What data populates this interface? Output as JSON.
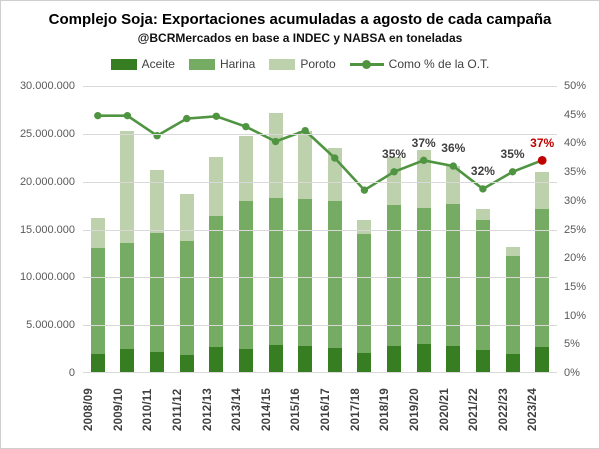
{
  "header": {
    "title": "Complejo Soja: Exportaciones acumuladas a agosto de cada campaña",
    "subtitle": "@BCRMercados en base a INDEC y NABSA en toneladas"
  },
  "colors": {
    "aceite": "#377d22",
    "harina": "#76ab64",
    "poroto": "#bdd1ad",
    "line": "#4f9440",
    "last_point": "#c00000",
    "grid": "#d9d9d9",
    "axis_text": "#595959",
    "label_text": "#404040"
  },
  "legend": [
    {
      "label": "Aceite",
      "type": "swatch",
      "color": "#377d22"
    },
    {
      "label": "Harina",
      "type": "swatch",
      "color": "#76ab64"
    },
    {
      "label": "Poroto",
      "type": "swatch",
      "color": "#bdd1ad"
    },
    {
      "label": "Como % de la O.T.",
      "type": "line",
      "color": "#4f9440"
    }
  ],
  "chart_data": {
    "type": "combo: stacked-bar + line",
    "title": "Complejo Soja: Exportaciones acumuladas a agosto de cada campaña",
    "subtitle": "@BCRMercados en base a INDEC y NABSA en toneladas",
    "categories": [
      "2008/09",
      "2009/10",
      "2010/11",
      "2011/12",
      "2012/13",
      "2013/14",
      "2014/15",
      "2015/16",
      "2016/17",
      "2017/18",
      "2018/19",
      "2019/20",
      "2020/21",
      "2021/22",
      "2022/23",
      "2023/24"
    ],
    "series": [
      {
        "name": "Aceite",
        "type": "bar-stack",
        "axis": "left",
        "color": "#377d22",
        "values": [
          1900000,
          2400000,
          2100000,
          1800000,
          2600000,
          2400000,
          2800000,
          2700000,
          2500000,
          2000000,
          2700000,
          2900000,
          2700000,
          2300000,
          1900000,
          2600000
        ]
      },
      {
        "name": "Harina",
        "type": "bar-stack",
        "axis": "left",
        "color": "#76ab64",
        "values": [
          11100000,
          11100000,
          12500000,
          11900000,
          13800000,
          15500000,
          15500000,
          15500000,
          15400000,
          12500000,
          14800000,
          14300000,
          14900000,
          13600000,
          10300000,
          14500000
        ]
      },
      {
        "name": "Poroto",
        "type": "bar-stack",
        "axis": "left",
        "color": "#bdd1ad",
        "values": [
          3200000,
          11800000,
          6600000,
          5000000,
          6200000,
          6900000,
          8900000,
          7100000,
          5600000,
          1400000,
          5100000,
          6100000,
          4000000,
          1200000,
          900000,
          3900000
        ]
      },
      {
        "name": "Como % de la O.T.",
        "type": "line",
        "axis": "right",
        "color": "#4f9440",
        "values": [
          44.8,
          44.8,
          41.3,
          44.3,
          44.7,
          42.9,
          40.3,
          42.2,
          37.4,
          31.8,
          35,
          37,
          36,
          32,
          35,
          37
        ]
      }
    ],
    "line_labels": [
      {
        "index": 10,
        "text": "35%",
        "color": "#404040"
      },
      {
        "index": 11,
        "text": "37%",
        "color": "#404040"
      },
      {
        "index": 12,
        "text": "36%",
        "color": "#404040"
      },
      {
        "index": 13,
        "text": "32%",
        "color": "#404040"
      },
      {
        "index": 14,
        "text": "35%",
        "color": "#404040"
      },
      {
        "index": 15,
        "text": "37%",
        "color": "#c00000"
      }
    ],
    "left_axis": {
      "min": 0,
      "max": 30000000,
      "step": 5000000,
      "ticks": [
        "30.000.000",
        "25.000.000",
        "20.000.000",
        "15.000.000",
        "10.000.000",
        "5.000.000",
        "0"
      ]
    },
    "right_axis": {
      "min": 0,
      "max": 50,
      "step": 5,
      "ticks": [
        "50%",
        "45%",
        "40%",
        "35%",
        "30%",
        "25%",
        "20%",
        "15%",
        "10%",
        "5%",
        "0%"
      ]
    },
    "grid": true,
    "legend_position": "top"
  }
}
